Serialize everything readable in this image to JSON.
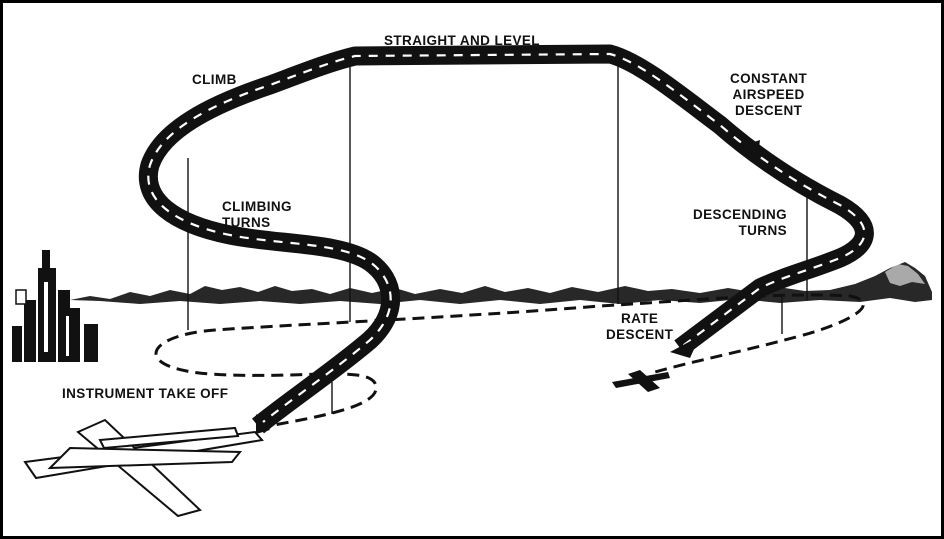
{
  "colors": {
    "ink": "#111111",
    "paper": "#ffffff",
    "ribbon_stripe": "#ffffff",
    "frame": "#000000"
  },
  "labels": {
    "straight_and_level": "STRAIGHT AND LEVEL",
    "climb": "CLIMB",
    "constant_airspeed_descent": [
      "CONSTANT",
      "AIRSPEED",
      "DESCENT"
    ],
    "climbing_turns": [
      "CLIMBING",
      "TURNS"
    ],
    "descending_turns": [
      "DESCENDING",
      "TURNS"
    ],
    "rate_descent": [
      "RATE",
      "DESCENT"
    ],
    "instrument_take_off": "INSTRUMENT TAKE OFF"
  },
  "icons": {
    "city": "city-skyline-icon",
    "runway": "runway-icon",
    "aircraft": "airplane-icon",
    "mountains": "mountain-range-icon"
  }
}
